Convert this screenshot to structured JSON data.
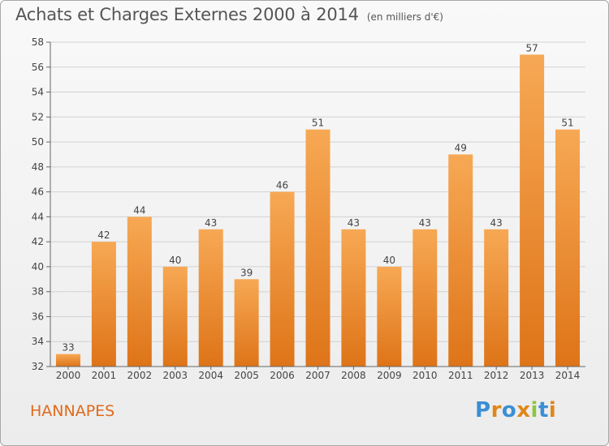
{
  "header": {
    "title": "Achats et Charges Externes 2000 à 2014",
    "subtitle": "(en milliers d'€)"
  },
  "footer": {
    "commune": "HANNAPES",
    "brand": "Proxiti"
  },
  "colors": {
    "bar_top": "#f7a854",
    "bar_bottom": "#de7418",
    "commune_text": "#e06a1c",
    "brand_letters": [
      "#3b8fd4",
      "#e0861a",
      "#3b8fd4",
      "#e0861a",
      "#8cc63f",
      "#3b8fd4",
      "#e0861a"
    ]
  },
  "chart_data": {
    "type": "bar",
    "categories": [
      "2000",
      "2001",
      "2002",
      "2003",
      "2004",
      "2005",
      "2006",
      "2007",
      "2008",
      "2009",
      "2010",
      "2011",
      "2012",
      "2013",
      "2014"
    ],
    "values": [
      33,
      42,
      44,
      40,
      43,
      39,
      46,
      51,
      43,
      40,
      43,
      49,
      43,
      57,
      51
    ],
    "data_labels": [
      "33",
      "42",
      "44",
      "40",
      "43",
      "39",
      "46",
      "51",
      "43",
      "40",
      "43",
      "49",
      "43",
      "57",
      "51"
    ],
    "ylim": [
      32,
      58
    ],
    "yticks": [
      32,
      34,
      36,
      38,
      40,
      42,
      44,
      46,
      48,
      50,
      52,
      54,
      56,
      58
    ],
    "xlabel": "",
    "ylabel": "",
    "grid": true
  }
}
